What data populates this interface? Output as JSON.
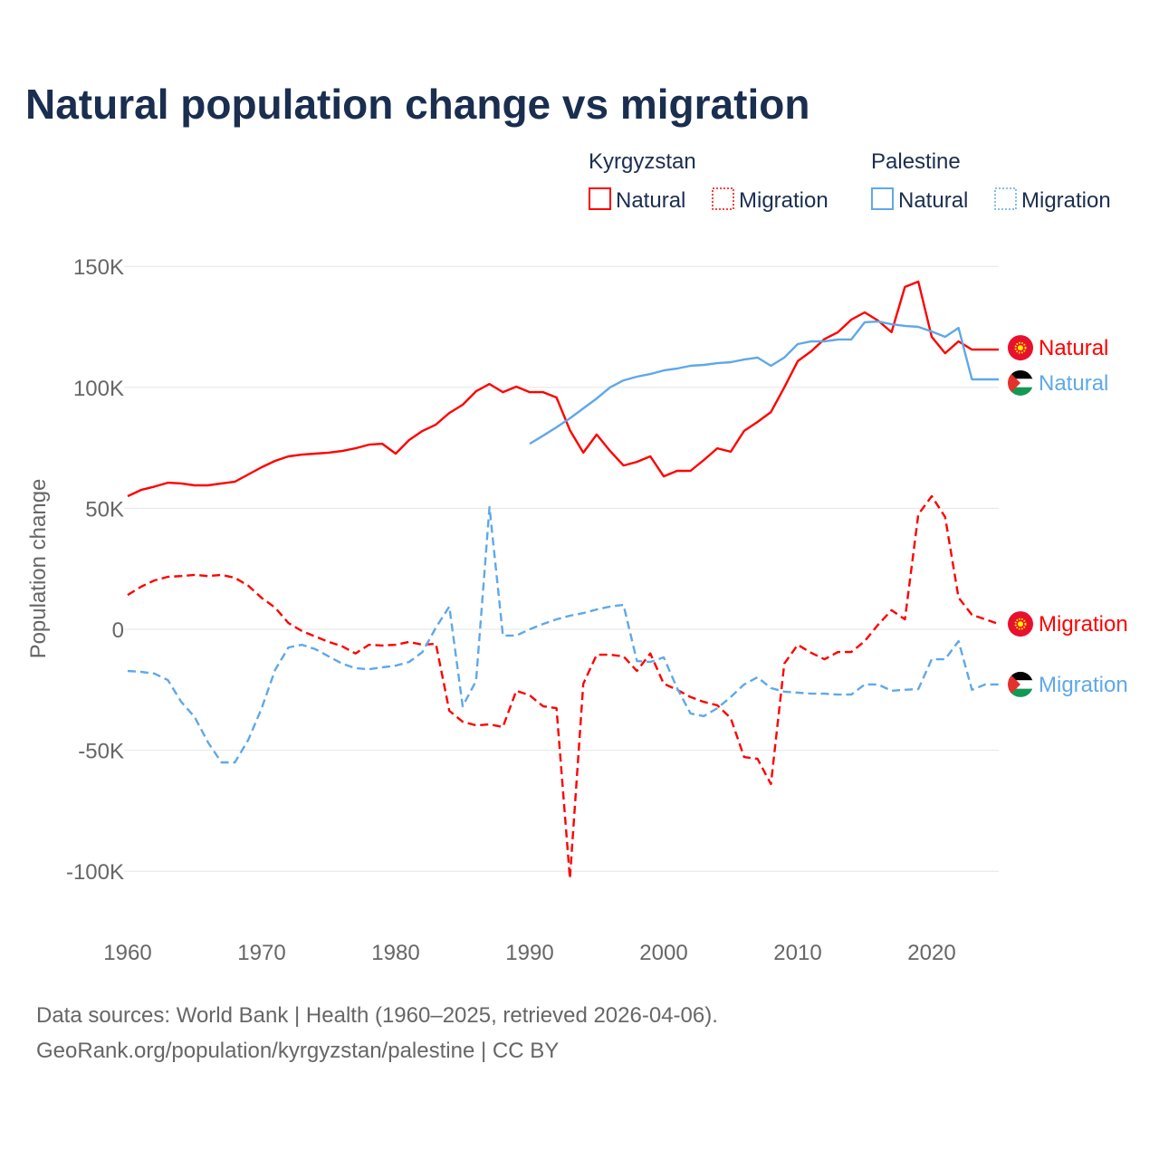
{
  "title": "Natural population change vs migration",
  "legend": {
    "groups": [
      {
        "name": "Kyrgyzstan",
        "color": "#ff0000",
        "items": [
          "Natural",
          "Migration"
        ]
      },
      {
        "name": "Palestine",
        "color": "#5fa8e8",
        "items": [
          "Natural",
          "Migration"
        ]
      }
    ]
  },
  "footer": {
    "line1": "Data sources: World Bank | Health (1960–2025, retrieved 2026-04-06).",
    "line2": "GeoRank.org/population/kyrgyzstan/palestine | CC BY"
  },
  "chart_data": {
    "type": "line",
    "title": "Natural population change vs migration",
    "xlabel": "",
    "ylabel": "Population change",
    "xlim": [
      1960,
      2025
    ],
    "ylim": [
      -100000,
      150000
    ],
    "grid": true,
    "legend_position": "top-right",
    "x_ticks": [
      1960,
      1970,
      1980,
      1990,
      2000,
      2010,
      2020
    ],
    "x_tick_labels": [
      "1960",
      "1970",
      "1980",
      "1990",
      "2000",
      "2010",
      "2020"
    ],
    "y_ticks": [
      150000,
      100000,
      50000,
      0,
      -50000,
      -100000
    ],
    "y_tick_labels": [
      "150K",
      "100K",
      "50K",
      "0",
      "-50K",
      "-100K"
    ],
    "series": [
      {
        "name": "Kyrgyzstan Natural",
        "end_label": "Natural",
        "country": "Kyrgyzstan",
        "color": "#ff0000",
        "dash": false,
        "start": 1960,
        "values": [
          55,
          57.6,
          59,
          60.6,
          60.3,
          59.5,
          59.5,
          60.3,
          61,
          64,
          67,
          69.6,
          71.5,
          72.2,
          72.6,
          73,
          73.7,
          74.8,
          76.3,
          76.7,
          72.6,
          78.2,
          82,
          84.6,
          89.4,
          92.8,
          98.4,
          101.4,
          98,
          100.3,
          98,
          98,
          95.8,
          82.3,
          73,
          80.5,
          73.7,
          67.7,
          69.2,
          71.5,
          63.2,
          65.5,
          65.5,
          70,
          74.8,
          73.4,
          82,
          85.7,
          89.8,
          100,
          110.8,
          114.9,
          120,
          122.8,
          128,
          131,
          127.6,
          122.8,
          141.5,
          143.7,
          120.9,
          114.1,
          119,
          115.6,
          115.6,
          115.6
        ]
      },
      {
        "name": "Palestine Natural",
        "end_label": "Natural",
        "country": "Palestine",
        "color": "#5fa8e8",
        "dash": false,
        "start": 1990,
        "values": [
          76.7,
          80,
          83.5,
          87.2,
          91.3,
          95.4,
          100,
          102.9,
          104.4,
          105.5,
          107,
          107.8,
          108.9,
          109.3,
          110,
          110.4,
          111.5,
          112.3,
          108.9,
          112.3,
          117.9,
          119,
          119,
          119.8,
          119.8,
          126.9,
          127.2,
          126.1,
          125.4,
          125,
          123.1,
          120.9,
          124.6,
          103.3,
          103.3,
          103.3
        ]
      },
      {
        "name": "Kyrgyzstan Migration",
        "end_label": "Migration",
        "country": "Kyrgyzstan",
        "color": "#ff0000",
        "dash": true,
        "start": 1960,
        "values": [
          14.2,
          17.6,
          20.2,
          21.7,
          22,
          22.5,
          22,
          22.5,
          21.3,
          18,
          13,
          9,
          2.6,
          -0.7,
          -3,
          -5.2,
          -7,
          -10,
          -6.4,
          -6.7,
          -6.4,
          -5.2,
          -6.4,
          -6,
          -33.7,
          -38.2,
          -39.7,
          -39.3,
          -40.4,
          -25.4,
          -27.3,
          -31.8,
          -32.6,
          -103,
          -22.5,
          -10.5,
          -10.5,
          -11.2,
          -17.2,
          -10,
          -22.5,
          -25,
          -28,
          -30,
          -31.4,
          -36.7,
          -52.8,
          -53.5,
          -64,
          -14.2,
          -6.4,
          -9.7,
          -12.4,
          -9.4,
          -9.4,
          -4.9,
          1.9,
          7.9,
          4.1,
          47.5,
          55,
          46.4,
          13.1,
          6,
          4.1,
          2.2
        ]
      },
      {
        "name": "Palestine Migration",
        "end_label": "Migration",
        "country": "Palestine",
        "color": "#5fa8e8",
        "dash": true,
        "start": 1960,
        "values": [
          -17.2,
          -17.6,
          -18.3,
          -21,
          -30,
          -36.3,
          -46.8,
          -55,
          -55,
          -45.7,
          -32.6,
          -16.8,
          -7.5,
          -6.4,
          -8.2,
          -11.2,
          -14.2,
          -16.1,
          -16.5,
          -15.7,
          -15,
          -13.5,
          -9.4,
          0.7,
          9.4,
          -31.8,
          -21.3,
          50.5,
          -2.6,
          -2.6,
          0,
          2.2,
          4.1,
          5.6,
          6.7,
          8.2,
          9.4,
          10.1,
          -13.1,
          -13.5,
          -11.6,
          -24.3,
          -34.8,
          -35.9,
          -32.6,
          -28,
          -22.8,
          -19.8,
          -24.3,
          -25.8,
          -26.2,
          -26.6,
          -26.6,
          -27,
          -27,
          -22.8,
          -22.8,
          -25.4,
          -25,
          -24.7,
          -12.4,
          -12.4,
          -4.9,
          -25,
          -22.8,
          -22.8
        ]
      }
    ],
    "value_unit": "thousands"
  }
}
